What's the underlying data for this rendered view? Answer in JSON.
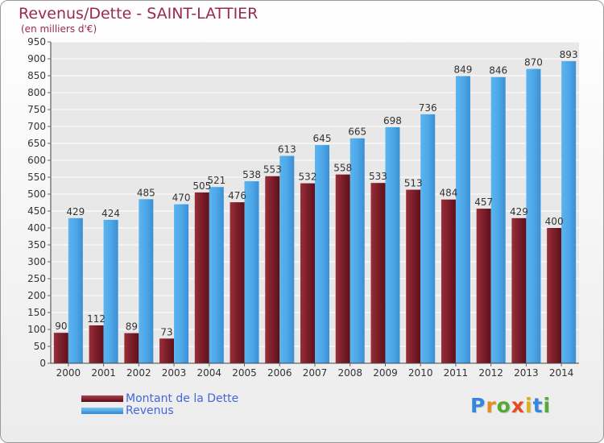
{
  "header": {
    "title": "Revenus/Dette - SAINT-LATTIER",
    "subtitle": "(en milliers d'€)"
  },
  "chart_data": {
    "type": "bar",
    "title": "Revenus/Dette - SAINT-LATTIER",
    "subtitle": "(en milliers d'€)",
    "xlabel": "",
    "ylabel": "",
    "ylim": [
      0,
      950
    ],
    "ytick_step": 50,
    "grid": true,
    "legend_position": "bottom-left",
    "categories": [
      "2000",
      "2001",
      "2002",
      "2003",
      "2004",
      "2005",
      "2006",
      "2007",
      "2008",
      "2009",
      "2010",
      "2011",
      "2012",
      "2013",
      "2014"
    ],
    "series": [
      {
        "name": "Montant de la Dette",
        "color": "#7a1e2a",
        "values": [
          90,
          112,
          89,
          73,
          505,
          476,
          553,
          532,
          558,
          533,
          513,
          484,
          457,
          429,
          400
        ]
      },
      {
        "name": "Revenus",
        "color": "#4ea8e8",
        "values": [
          429,
          424,
          485,
          470,
          521,
          538,
          613,
          645,
          665,
          698,
          736,
          849,
          846,
          870,
          893
        ]
      }
    ]
  },
  "legend": {
    "items": [
      {
        "label": "Montant de la Dette",
        "color": "#7a1e2a"
      },
      {
        "label": "Revenus",
        "color": "#4ea8e8"
      }
    ]
  },
  "logo": {
    "letters": [
      "P",
      "r",
      "o",
      "x",
      "i",
      "t",
      "i"
    ],
    "colors": [
      "#3388dd",
      "#e88a20",
      "#55aa33",
      "#e84a20",
      "#d8b020",
      "#3388dd",
      "#55aa33"
    ]
  }
}
